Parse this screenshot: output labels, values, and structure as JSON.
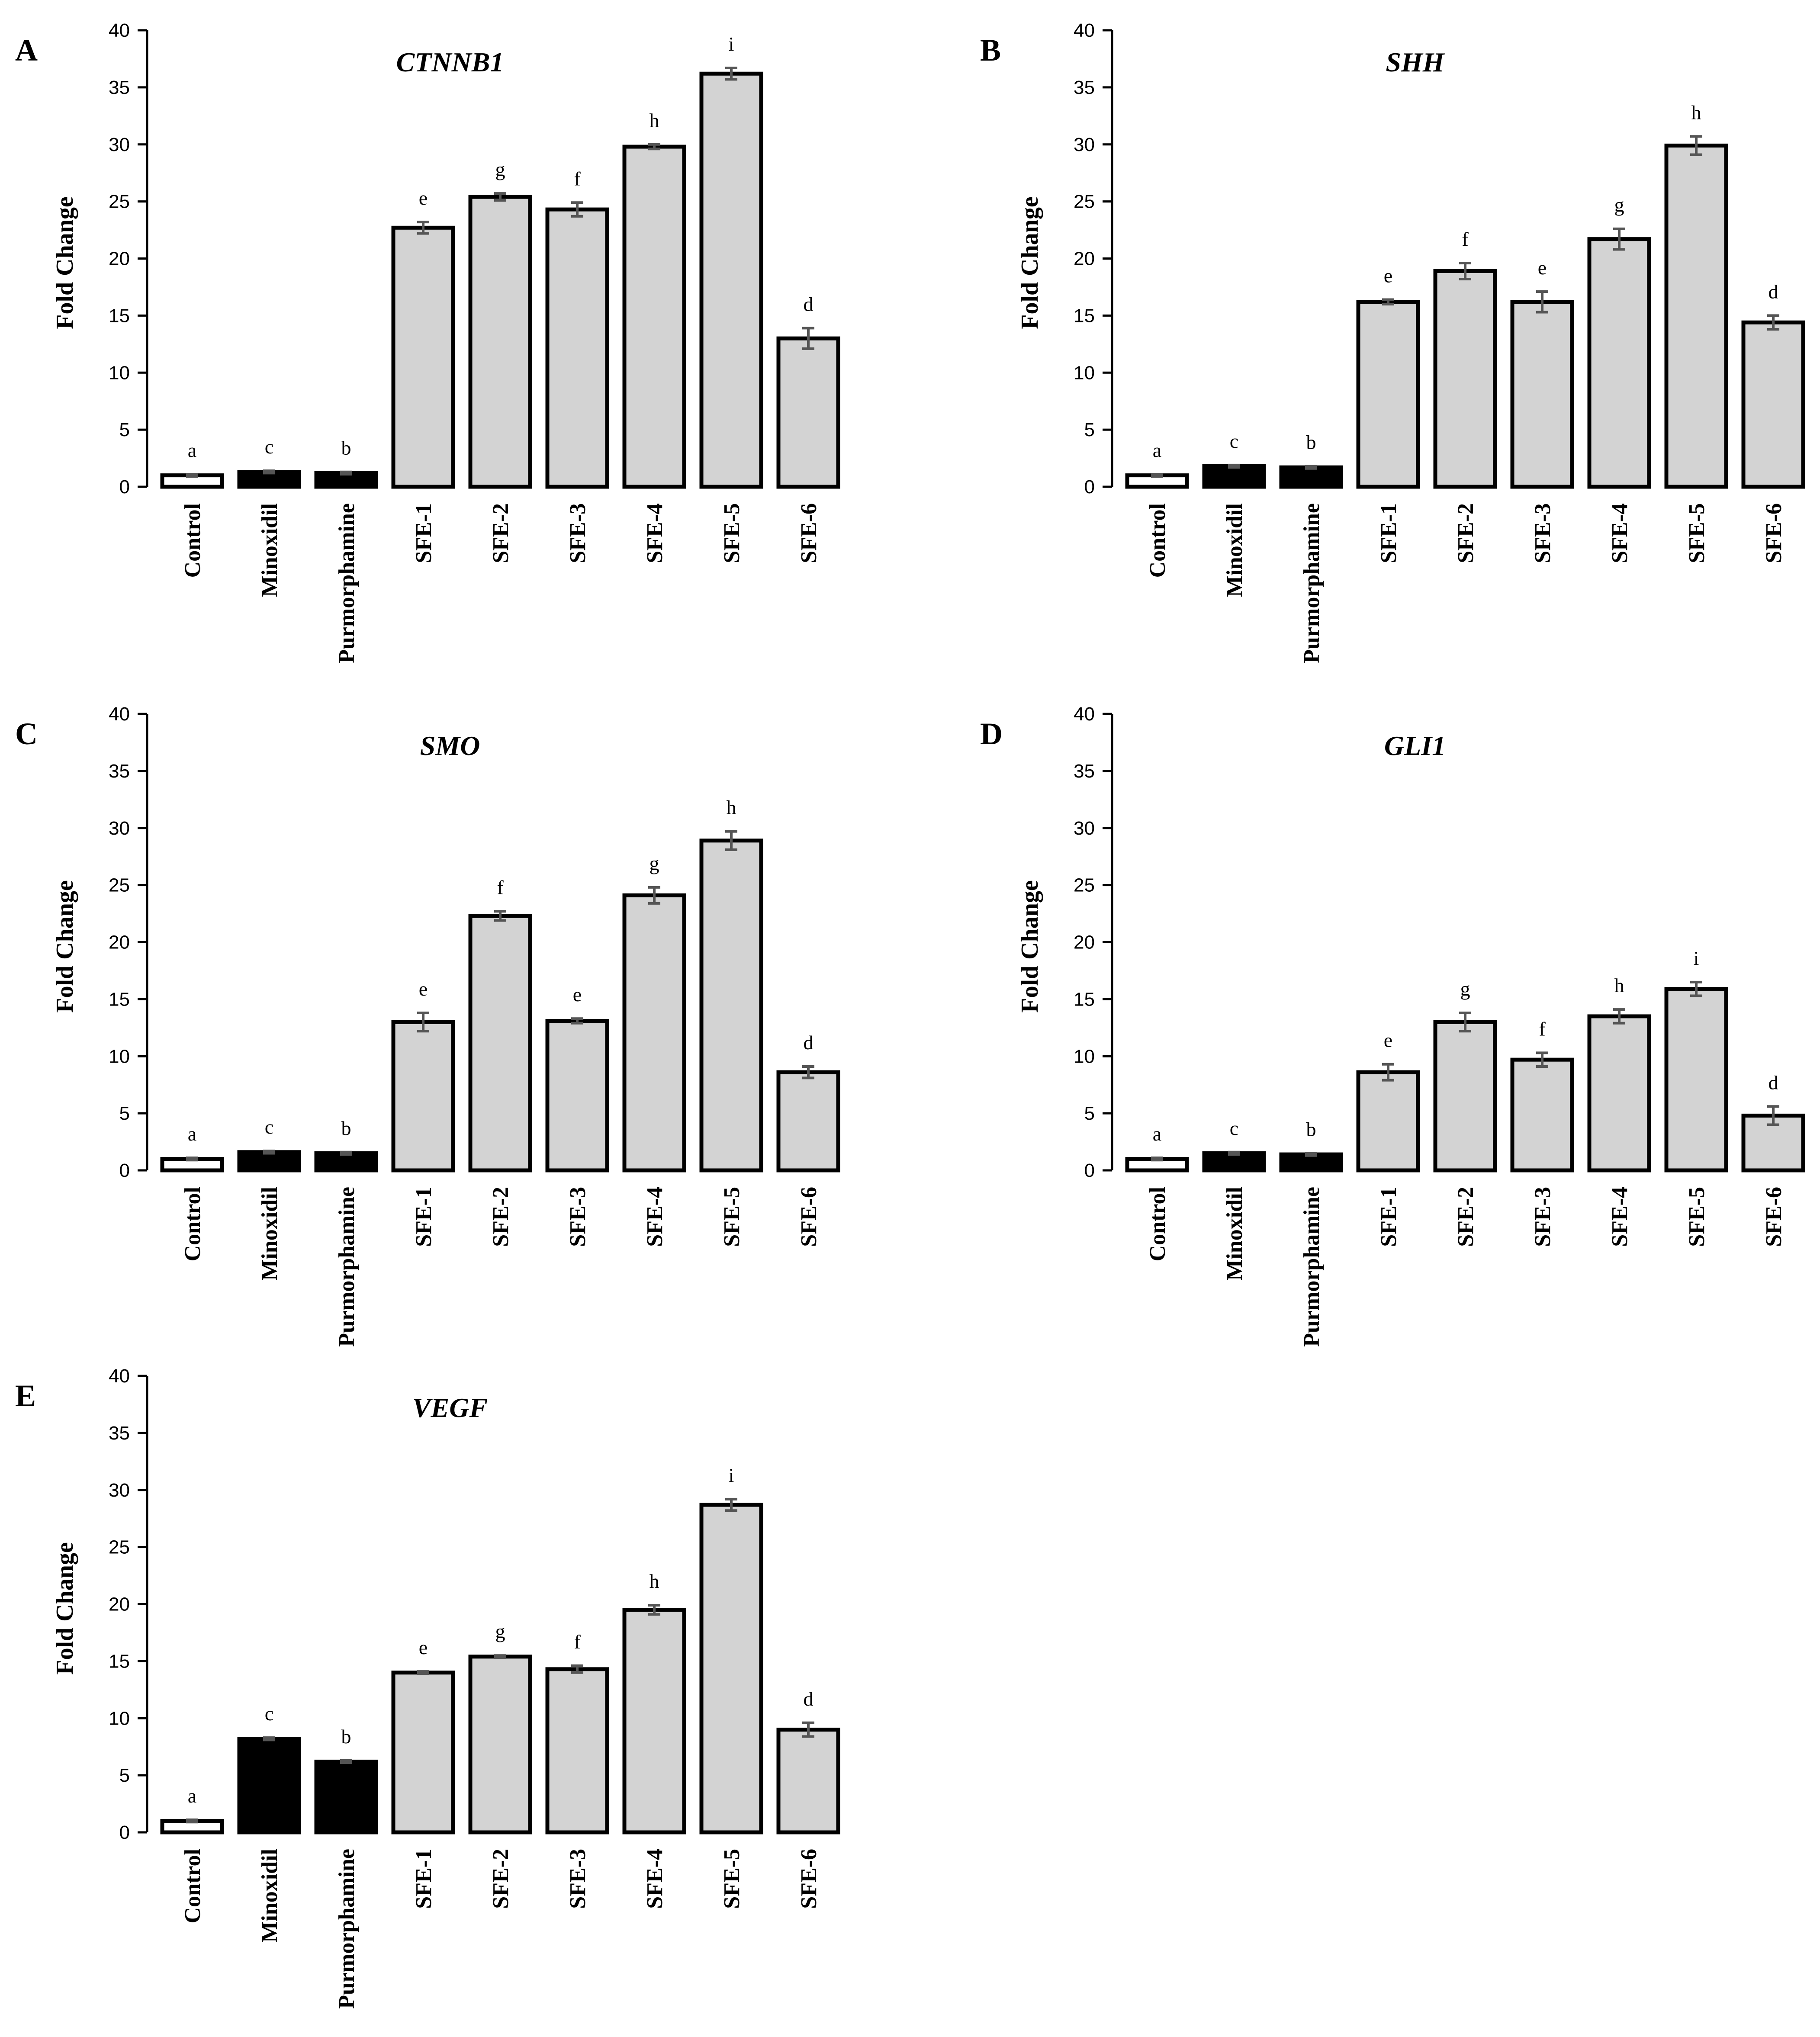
{
  "style": {
    "colors": {
      "Control": "#ffffff",
      "Minoxidil": "#000000",
      "Purmorphamine": "#000000",
      "SFE": "#d3d3d3",
      "outline": "#000000",
      "error_bar": "#555555"
    }
  },
  "chart_data": [
    {
      "panel": "A",
      "type": "bar",
      "title": "CTNNB1",
      "ylabel": "Fold Change",
      "xlabel": "",
      "ylim": [
        0,
        40
      ],
      "yticks": [
        0,
        5,
        10,
        15,
        20,
        25,
        30,
        35,
        40
      ],
      "categories": [
        "Control",
        "Minoxidil",
        "Purmorphamine",
        "SFE-1",
        "SFE-2",
        "SFE-3",
        "SFE-4",
        "SFE-5",
        "SFE-6"
      ],
      "values": [
        1.0,
        1.3,
        1.2,
        22.7,
        25.4,
        24.3,
        29.8,
        36.2,
        13.0
      ],
      "errors": [
        0.1,
        0.1,
        0.1,
        0.5,
        0.3,
        0.6,
        0.2,
        0.5,
        0.9
      ],
      "significance": [
        "a",
        "c",
        "b",
        "e",
        "g",
        "f",
        "h",
        "i",
        "d"
      ]
    },
    {
      "panel": "B",
      "type": "bar",
      "title": "SHH",
      "ylabel": "Fold Change",
      "xlabel": "",
      "ylim": [
        0,
        40
      ],
      "yticks": [
        0,
        5,
        10,
        15,
        20,
        25,
        30,
        35,
        40
      ],
      "categories": [
        "Control",
        "Minoxidil",
        "Purmorphamine",
        "SFE-1",
        "SFE-2",
        "SFE-3",
        "SFE-4",
        "SFE-5",
        "SFE-6"
      ],
      "values": [
        1.0,
        1.8,
        1.7,
        16.2,
        18.9,
        16.2,
        21.7,
        29.9,
        14.4
      ],
      "errors": [
        0.1,
        0.1,
        0.1,
        0.2,
        0.7,
        0.9,
        0.9,
        0.8,
        0.6
      ],
      "significance": [
        "a",
        "c",
        "b",
        "e",
        "f",
        "e",
        "g",
        "h",
        "d"
      ]
    },
    {
      "panel": "C",
      "type": "bar",
      "title": "SMO",
      "ylabel": "Fold Change",
      "xlabel": "",
      "ylim": [
        0,
        40
      ],
      "yticks": [
        0,
        5,
        10,
        15,
        20,
        25,
        30,
        35,
        40
      ],
      "categories": [
        "Control",
        "Minoxidil",
        "Purmorphamine",
        "SFE-1",
        "SFE-2",
        "SFE-3",
        "SFE-4",
        "SFE-5",
        "SFE-6"
      ],
      "values": [
        1.0,
        1.6,
        1.5,
        13.0,
        22.3,
        13.1,
        24.1,
        28.9,
        8.6
      ],
      "errors": [
        0.1,
        0.1,
        0.1,
        0.8,
        0.4,
        0.2,
        0.7,
        0.8,
        0.5
      ],
      "significance": [
        "a",
        "c",
        "b",
        "e",
        "f",
        "e",
        "g",
        "h",
        "d"
      ]
    },
    {
      "panel": "D",
      "type": "bar",
      "title": "GLI1",
      "ylabel": "Fold Change",
      "xlabel": "",
      "ylim": [
        0,
        40
      ],
      "yticks": [
        0,
        5,
        10,
        15,
        20,
        25,
        30,
        35,
        40
      ],
      "categories": [
        "Control",
        "Minoxidil",
        "Purmorphamine",
        "SFE-1",
        "SFE-2",
        "SFE-3",
        "SFE-4",
        "SFE-5",
        "SFE-6"
      ],
      "values": [
        1.0,
        1.5,
        1.4,
        8.6,
        13.0,
        9.7,
        13.5,
        15.9,
        4.8
      ],
      "errors": [
        0.1,
        0.1,
        0.1,
        0.7,
        0.8,
        0.6,
        0.6,
        0.6,
        0.8
      ],
      "significance": [
        "a",
        "c",
        "b",
        "e",
        "g",
        "f",
        "h",
        "i",
        "d"
      ]
    },
    {
      "panel": "E",
      "type": "bar",
      "title": "VEGF",
      "ylabel": "Fold Change",
      "xlabel": "",
      "ylim": [
        0,
        40
      ],
      "yticks": [
        0,
        5,
        10,
        15,
        20,
        25,
        30,
        35,
        40
      ],
      "categories": [
        "Control",
        "Minoxidil",
        "Purmorphamine",
        "SFE-1",
        "SFE-2",
        "SFE-3",
        "SFE-4",
        "SFE-5",
        "SFE-6"
      ],
      "values": [
        1.0,
        8.2,
        6.2,
        14.0,
        15.4,
        14.3,
        19.5,
        28.7,
        9.0
      ],
      "errors": [
        0.1,
        0.1,
        0.1,
        0.1,
        0.1,
        0.3,
        0.4,
        0.5,
        0.6
      ],
      "significance": [
        "a",
        "c",
        "b",
        "e",
        "g",
        "f",
        "h",
        "i",
        "d"
      ]
    }
  ]
}
